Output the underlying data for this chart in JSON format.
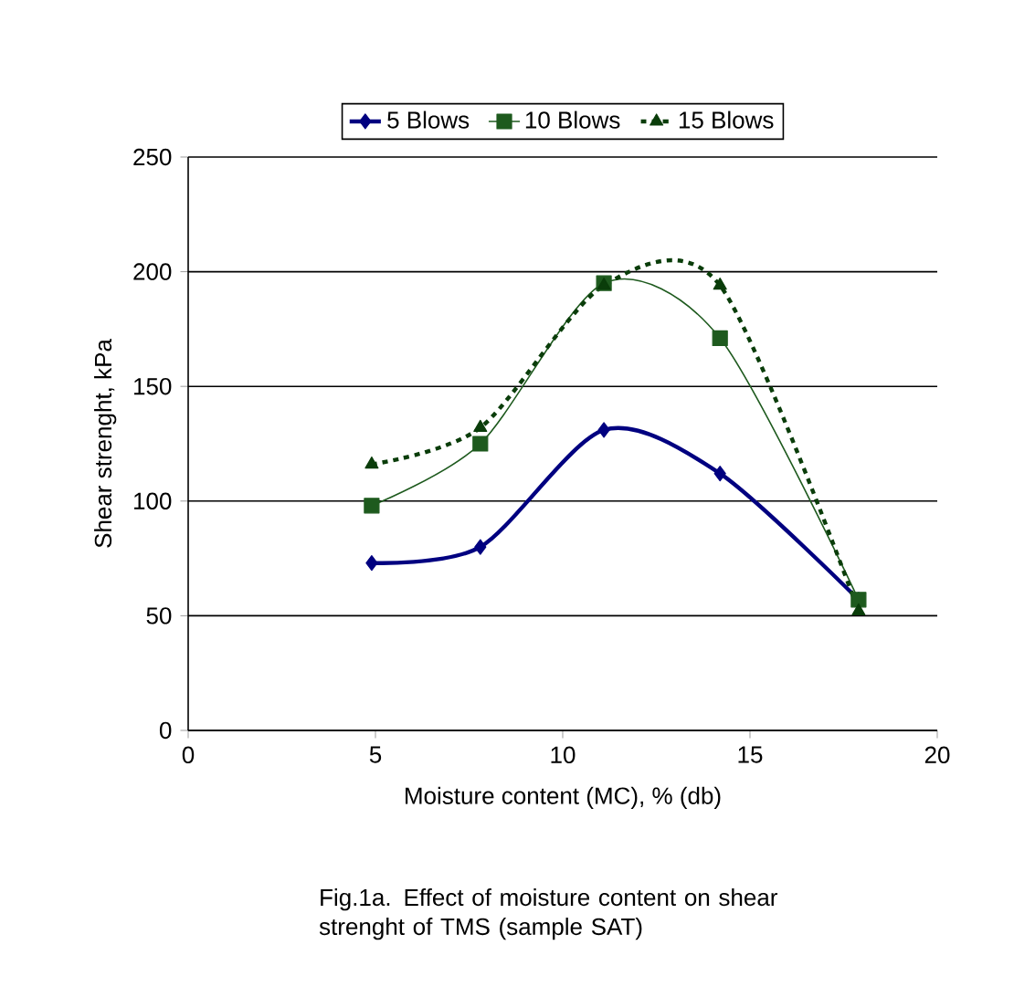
{
  "chart_data": {
    "type": "line",
    "xlabel": "Moisture content (MC), % (db)",
    "ylabel": "Shear strenght, kPa",
    "annotations": [
      "Fig.1a. Effect of moisture content on shear strenght of TMS (sample SAT)"
    ],
    "xlim": [
      0,
      20
    ],
    "xticks": [
      0,
      5,
      10,
      15,
      20
    ],
    "ylim": [
      0,
      250
    ],
    "yticks": [
      0,
      50,
      100,
      150,
      200,
      250
    ],
    "grid": "y",
    "legend": "top",
    "series": [
      {
        "name": "5 Blows",
        "color": "#000080",
        "marker": "diamond",
        "line_style": "solid",
        "x": [
          4.9,
          7.8,
          11.1,
          14.2,
          17.9
        ],
        "values": [
          73,
          80,
          131,
          112,
          57
        ]
      },
      {
        "name": "10 Blows",
        "color": "#1e5a1e",
        "marker": "square",
        "line_style": "solid",
        "x": [
          4.9,
          7.8,
          11.1,
          14.2,
          17.9
        ],
        "values": [
          98,
          125,
          195,
          171,
          57
        ]
      },
      {
        "name": "15 Blows",
        "color": "#0a3d0a",
        "marker": "triangle",
        "line_style": "dashed",
        "x": [
          4.9,
          7.8,
          11.1,
          14.2,
          17.9
        ],
        "values": [
          116,
          132,
          194,
          194,
          52
        ]
      }
    ]
  }
}
